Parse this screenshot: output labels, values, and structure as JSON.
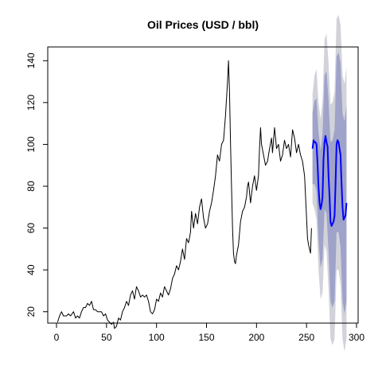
{
  "chart_data": {
    "type": "line",
    "title": "Oil Prices (USD / bbl)",
    "xlabel": "",
    "ylabel": "",
    "xlim": [
      0,
      300
    ],
    "ylim": [
      10,
      150
    ],
    "x_ticks": [
      0,
      50,
      100,
      150,
      200,
      250,
      300
    ],
    "y_ticks": [
      20,
      40,
      60,
      80,
      100,
      120,
      140
    ],
    "grid": false,
    "colors": {
      "history": "#000000",
      "forecast": "#0000ff",
      "band_80": "#9fa3c9",
      "band_95": "#d2d3da"
    },
    "series": [
      {
        "role": "history",
        "points": [
          [
            1,
            15
          ],
          [
            3,
            18
          ],
          [
            5,
            20
          ],
          [
            7,
            18
          ],
          [
            10,
            18
          ],
          [
            12,
            19
          ],
          [
            14,
            18
          ],
          [
            17,
            20
          ],
          [
            19,
            17
          ],
          [
            21,
            18
          ],
          [
            23,
            17
          ],
          [
            25,
            20
          ],
          [
            27,
            22
          ],
          [
            29,
            22
          ],
          [
            31,
            24
          ],
          [
            33,
            23
          ],
          [
            35,
            25
          ],
          [
            37,
            21
          ],
          [
            39,
            21
          ],
          [
            41,
            20
          ],
          [
            43,
            20
          ],
          [
            45,
            20
          ],
          [
            47,
            18
          ],
          [
            49,
            19
          ],
          [
            51,
            16
          ],
          [
            53,
            15
          ],
          [
            55,
            14
          ],
          [
            57,
            15
          ],
          [
            58,
            12
          ],
          [
            60,
            13
          ],
          [
            62,
            17
          ],
          [
            64,
            16
          ],
          [
            66,
            20
          ],
          [
            68,
            22
          ],
          [
            70,
            25
          ],
          [
            72,
            23
          ],
          [
            74,
            28
          ],
          [
            76,
            30
          ],
          [
            78,
            26
          ],
          [
            80,
            32
          ],
          [
            82,
            30
          ],
          [
            84,
            27
          ],
          [
            86,
            28
          ],
          [
            88,
            27
          ],
          [
            90,
            28
          ],
          [
            92,
            25
          ],
          [
            94,
            20
          ],
          [
            96,
            19
          ],
          [
            98,
            21
          ],
          [
            100,
            26
          ],
          [
            102,
            25
          ],
          [
            104,
            29
          ],
          [
            106,
            27
          ],
          [
            108,
            32
          ],
          [
            110,
            30
          ],
          [
            112,
            28
          ],
          [
            114,
            31
          ],
          [
            116,
            36
          ],
          [
            118,
            38
          ],
          [
            120,
            42
          ],
          [
            122,
            40
          ],
          [
            124,
            44
          ],
          [
            126,
            50
          ],
          [
            128,
            45
          ],
          [
            130,
            55
          ],
          [
            132,
            53
          ],
          [
            134,
            58
          ],
          [
            135,
            68
          ],
          [
            137,
            60
          ],
          [
            139,
            67
          ],
          [
            141,
            62
          ],
          [
            143,
            70
          ],
          [
            145,
            74
          ],
          [
            147,
            65
          ],
          [
            149,
            60
          ],
          [
            151,
            62
          ],
          [
            153,
            68
          ],
          [
            155,
            72
          ],
          [
            157,
            78
          ],
          [
            159,
            85
          ],
          [
            161,
            95
          ],
          [
            163,
            92
          ],
          [
            165,
            100
          ],
          [
            167,
            102
          ],
          [
            169,
            114
          ],
          [
            171,
            130
          ],
          [
            172,
            140
          ],
          [
            173,
            125
          ],
          [
            174,
            100
          ],
          [
            175,
            80
          ],
          [
            176,
            60
          ],
          [
            177,
            48
          ],
          [
            178,
            44
          ],
          [
            179,
            43
          ],
          [
            180,
            47
          ],
          [
            182,
            52
          ],
          [
            184,
            63
          ],
          [
            186,
            68
          ],
          [
            188,
            70
          ],
          [
            190,
            75
          ],
          [
            191,
            80
          ],
          [
            192,
            82
          ],
          [
            194,
            72
          ],
          [
            196,
            80
          ],
          [
            198,
            85
          ],
          [
            200,
            78
          ],
          [
            202,
            85
          ],
          [
            203,
            98
          ],
          [
            204,
            108
          ],
          [
            205,
            100
          ],
          [
            207,
            95
          ],
          [
            209,
            90
          ],
          [
            211,
            92
          ],
          [
            213,
            98
          ],
          [
            215,
            103
          ],
          [
            216,
            96
          ],
          [
            218,
            108
          ],
          [
            220,
            98
          ],
          [
            222,
            100
          ],
          [
            224,
            92
          ],
          [
            226,
            95
          ],
          [
            228,
            102
          ],
          [
            230,
            98
          ],
          [
            232,
            100
          ],
          [
            234,
            94
          ],
          [
            236,
            107
          ],
          [
            238,
            103
          ],
          [
            240,
            96
          ],
          [
            242,
            100
          ],
          [
            244,
            95
          ],
          [
            246,
            92
          ],
          [
            248,
            85
          ],
          [
            250,
            65
          ],
          [
            251,
            55
          ],
          [
            252,
            52
          ],
          [
            253,
            50
          ],
          [
            254,
            48
          ],
          [
            255,
            60
          ]
        ]
      },
      {
        "role": "forecast",
        "points": [
          [
            256,
            98
          ],
          [
            257,
            102
          ],
          [
            258,
            101
          ],
          [
            259,
            101
          ],
          [
            260,
            100
          ],
          [
            261,
            91
          ],
          [
            262,
            80
          ],
          [
            263,
            72
          ],
          [
            264,
            69
          ],
          [
            265,
            71
          ],
          [
            266,
            75
          ],
          [
            267,
            93
          ],
          [
            268,
            101
          ],
          [
            269,
            104
          ],
          [
            270,
            101
          ],
          [
            271,
            99
          ],
          [
            272,
            85
          ],
          [
            273,
            75
          ],
          [
            274,
            63
          ],
          [
            275,
            61
          ],
          [
            276,
            62
          ],
          [
            277,
            63
          ],
          [
            278,
            66
          ],
          [
            279,
            81
          ],
          [
            280,
            100
          ],
          [
            281,
            102
          ],
          [
            282,
            101
          ],
          [
            283,
            98
          ],
          [
            284,
            95
          ],
          [
            285,
            82
          ],
          [
            286,
            70
          ],
          [
            287,
            64
          ],
          [
            288,
            65
          ],
          [
            289,
            66
          ],
          [
            290,
            72
          ]
        ]
      }
    ],
    "intervals": {
      "x": [
        256,
        258,
        260,
        262,
        264,
        266,
        268,
        270,
        272,
        274,
        276,
        278,
        280,
        282,
        284,
        286,
        288,
        290
      ],
      "center": [
        98,
        101,
        100,
        80,
        69,
        75,
        101,
        101,
        85,
        63,
        62,
        66,
        100,
        101,
        95,
        70,
        65,
        72
      ],
      "hw80": [
        17,
        20,
        22,
        26,
        28,
        30,
        32,
        34,
        36,
        38,
        40,
        41,
        42,
        43,
        44,
        45,
        46,
        47
      ],
      "hw95": [
        26,
        32,
        36,
        40,
        43,
        46,
        49,
        52,
        54,
        56,
        58,
        59,
        60,
        61,
        62,
        63,
        64,
        65
      ]
    }
  }
}
